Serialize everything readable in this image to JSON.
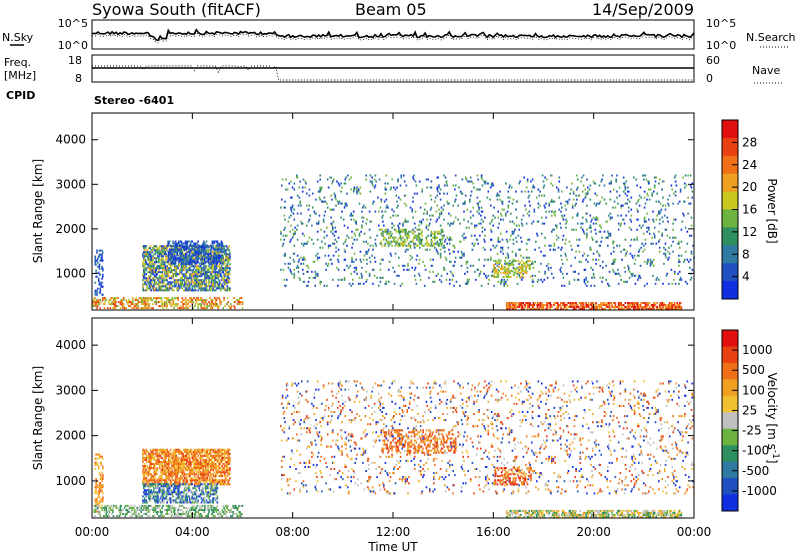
{
  "header": {
    "title": "Syowa South (fitACF)",
    "beam": "Beam 05",
    "date": "14/Sep/2009"
  },
  "noise_panel": {
    "left_label": "N.Sky",
    "left_ticks": [
      "10^5",
      "10^0"
    ],
    "right_ticks": [
      "10^5",
      "10^0"
    ],
    "right_label": "N.Search"
  },
  "freq_panel": {
    "left_label_1": "Freq.",
    "left_label_2": "[MHz]",
    "left_ticks": [
      "18",
      "8"
    ],
    "right_ticks": [
      "60",
      "0"
    ],
    "right_label": "Nave",
    "cpid_label": "CPID",
    "program_label": "Stereo -6401"
  },
  "chart_data": [
    {
      "type": "heatmap",
      "title": "",
      "xlabel": "",
      "ylabel": "Slant Range [km]",
      "x_ticks": [
        "00:00",
        "04:00",
        "08:00",
        "12:00",
        "16:00",
        "20:00",
        "00:00"
      ],
      "y_ticks": [
        "1000",
        "2000",
        "3000",
        "4000"
      ],
      "xlim_hours": [
        0,
        24
      ],
      "ylim_km": [
        180,
        4600
      ],
      "colorbar": {
        "label": "Power [dB]",
        "ticks": [
          "4",
          "8",
          "12",
          "16",
          "20",
          "24",
          "28"
        ],
        "colors": [
          "#1030e0",
          "#2050c0",
          "#2e7aa0",
          "#2e9060",
          "#6db33f",
          "#c8c820",
          "#f0a020",
          "#f07018",
          "#e84010",
          "#e01010"
        ]
      },
      "clusters": [
        {
          "t0": 0.1,
          "t1": 0.4,
          "r0": 500,
          "r1": 1500,
          "density": 0.3,
          "palette": [
            0,
            1,
            2
          ]
        },
        {
          "t0": 2.0,
          "t1": 5.5,
          "r0": 600,
          "r1": 1600,
          "density": 0.55,
          "palette": [
            0,
            1,
            2,
            3,
            4,
            5,
            6
          ]
        },
        {
          "t0": 3.0,
          "t1": 5.2,
          "r0": 1200,
          "r1": 1700,
          "density": 0.4,
          "palette": [
            0,
            1,
            2
          ]
        },
        {
          "t0": 0.0,
          "t1": 6.0,
          "r0": 200,
          "r1": 450,
          "density": 0.35,
          "palette": [
            4,
            5,
            6,
            7,
            8
          ]
        },
        {
          "t0": 7.5,
          "t1": 24.0,
          "r0": 700,
          "r1": 3200,
          "density": 0.06,
          "palette": [
            0,
            1,
            2,
            3,
            4
          ]
        },
        {
          "t0": 11.5,
          "t1": 14.0,
          "r0": 1600,
          "r1": 2000,
          "density": 0.25,
          "palette": [
            3,
            4,
            5
          ]
        },
        {
          "t0": 16.0,
          "t1": 17.5,
          "r0": 900,
          "r1": 1300,
          "density": 0.3,
          "palette": [
            4,
            5,
            6
          ]
        },
        {
          "t0": 16.5,
          "t1": 23.5,
          "r0": 180,
          "r1": 330,
          "density": 0.55,
          "palette": [
            6,
            7,
            8,
            9
          ]
        }
      ]
    },
    {
      "type": "heatmap",
      "title": "",
      "xlabel": "Time UT",
      "ylabel": "Slant Range [km]",
      "x_ticks": [
        "00:00",
        "04:00",
        "08:00",
        "12:00",
        "16:00",
        "20:00",
        "00:00"
      ],
      "y_ticks": [
        "1000",
        "2000",
        "3000",
        "4000"
      ],
      "xlim_hours": [
        0,
        24
      ],
      "ylim_km": [
        180,
        4600
      ],
      "colorbar": {
        "label": "Velocity [m s^-1]",
        "ticks": [
          "1000",
          "500",
          "100",
          "25",
          "-25",
          "-100",
          "-500",
          "-1000"
        ],
        "colors": [
          "#1030e0",
          "#2050c0",
          "#2e7aa0",
          "#2e9060",
          "#6db33f",
          "#c0c0c0",
          "#f0c030",
          "#f0a020",
          "#f07018",
          "#e84010",
          "#e01010"
        ]
      },
      "clusters": [
        {
          "t0": 0.1,
          "t1": 0.4,
          "r0": 300,
          "r1": 1600,
          "density": 0.3,
          "palette": [
            6,
            7,
            8
          ]
        },
        {
          "t0": 2.0,
          "t1": 5.5,
          "r0": 900,
          "r1": 1700,
          "density": 0.6,
          "palette": [
            6,
            7,
            8,
            9
          ]
        },
        {
          "t0": 2.0,
          "t1": 5.0,
          "r0": 500,
          "r1": 950,
          "density": 0.45,
          "palette": [
            0,
            1,
            2,
            3,
            4,
            5
          ]
        },
        {
          "t0": 0.0,
          "t1": 6.0,
          "r0": 200,
          "r1": 450,
          "density": 0.35,
          "palette": [
            3,
            4,
            5
          ]
        },
        {
          "t0": 7.5,
          "t1": 24.0,
          "r0": 700,
          "r1": 3200,
          "density": 0.06,
          "palette": [
            0,
            1,
            5,
            6,
            7,
            8,
            9
          ]
        },
        {
          "t0": 11.5,
          "t1": 14.5,
          "r0": 1600,
          "r1": 2100,
          "density": 0.25,
          "palette": [
            7,
            8,
            9
          ]
        },
        {
          "t0": 16.0,
          "t1": 17.5,
          "r0": 900,
          "r1": 1300,
          "density": 0.3,
          "palette": [
            7,
            8,
            9,
            10
          ]
        },
        {
          "t0": 16.5,
          "t1": 23.5,
          "r0": 180,
          "r1": 330,
          "density": 0.45,
          "palette": [
            3,
            4,
            5,
            6,
            7
          ]
        }
      ]
    }
  ]
}
